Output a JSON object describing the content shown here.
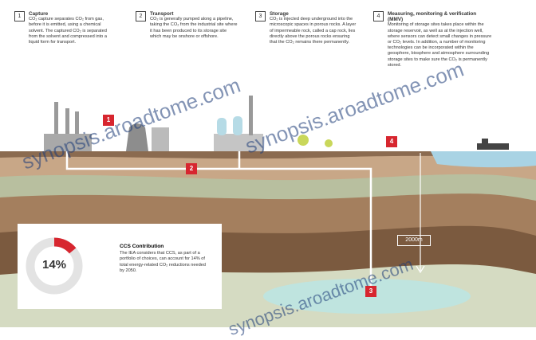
{
  "steps": [
    {
      "number": "1",
      "title": "Capture",
      "text": "CO₂ capture separates CO₂ from gas, before it is emitted, using a chemical solvent. The captured CO₂ is separated from the solvent and compressed into a liquid form for transport."
    },
    {
      "number": "2",
      "title": "Transport",
      "text": "CO₂ is generally pumped along a pipeline, taking the CO₂ from the industrial site where it has been produced to its storage site which may be onshore or offshore."
    },
    {
      "number": "3",
      "title": "Storage",
      "text": "CO₂ is injected deep underground into the microscopic spaces in porous rocks. A layer of impermeable rock, called a cap rock, lies directly above the porous rocks ensuring that the CO₂ remains there permanently."
    },
    {
      "number": "4",
      "title": "Measuring, monitoring & verification (MMV)",
      "text": "Monitoring of storage sites takes place within the storage reservoir, as well as at the injection well, where sensors can detect small changes in pressure or CO₂ levels. In addition, a number of monitoring technologies can be incorporated within the geosphere, biosphere and atmosphere surrounding storage sites to make sure the CO₂ is permanently stored."
    }
  ],
  "markers": [
    "1",
    "2",
    "3",
    "4"
  ],
  "depth_label": "2000m",
  "ccs": {
    "title": "CCS Contribution",
    "text": "The IEA considers that CCS, as part of a portfolio of choices, can account for 14% of total energy-related CO₂ reductions needed by 2050.",
    "share": {
      "value": 14,
      "label": "14%"
    }
  },
  "watermark": "synopsis.aroadtome.com"
}
